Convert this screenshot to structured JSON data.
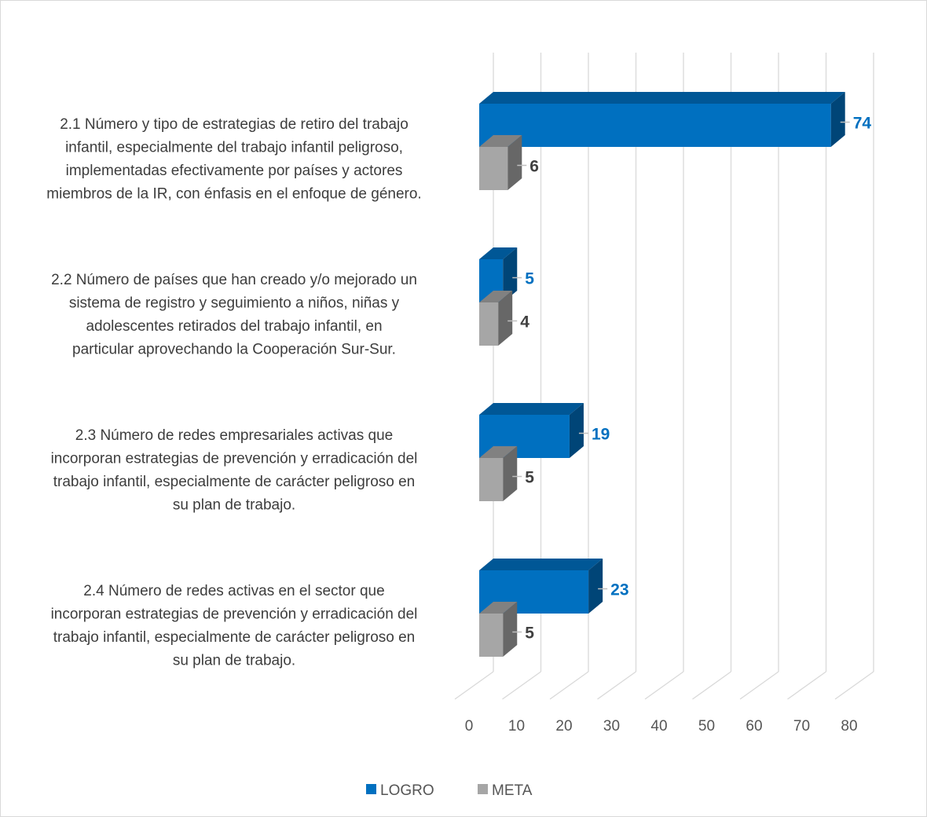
{
  "chart_data": {
    "type": "bar",
    "orientation": "horizontal",
    "three_d": true,
    "categories": [
      [
        "2.1  Número y tipo de estrategias de retiro del trabajo",
        "infantil, especialmente del trabajo infantil peligroso,",
        "implementadas efectivamente por  países y actores",
        "miembros de la IR, con énfasis en el enfoque de género."
      ],
      [
        "2.2  Número de países que han creado y/o  mejorado un",
        "sistema  de registro y seguimiento a niños, niñas y",
        "adolescentes  retirados del trabajo infantil,  en",
        "particular aprovechando la Cooperación Sur-Sur."
      ],
      [
        "2.3  Número de redes empresariales activas que",
        "incorporan estrategias de prevención y erradicación del",
        "trabajo infantil, especialmente de carácter peligroso en",
        "su plan de trabajo."
      ],
      [
        "2.4  Número de redes  activas en el sector  que",
        "incorporan estrategias de prevención y erradicación del",
        "trabajo infantil, especialmente de carácter peligroso en",
        "su plan de trabajo."
      ]
    ],
    "series": [
      {
        "name": "LOGRO",
        "values": [
          74,
          5,
          19,
          23
        ],
        "color": "#0070c0",
        "label_color": "#0070c0"
      },
      {
        "name": "META",
        "values": [
          6,
          4,
          5,
          5
        ],
        "color": "#a6a6a6",
        "label_color": "#404040"
      }
    ],
    "xlim": [
      0,
      80
    ],
    "ticks": [
      "0",
      "10",
      "20",
      "30",
      "40",
      "50",
      "60",
      "70",
      "80"
    ],
    "grid": true,
    "legend_position": "bottom"
  }
}
